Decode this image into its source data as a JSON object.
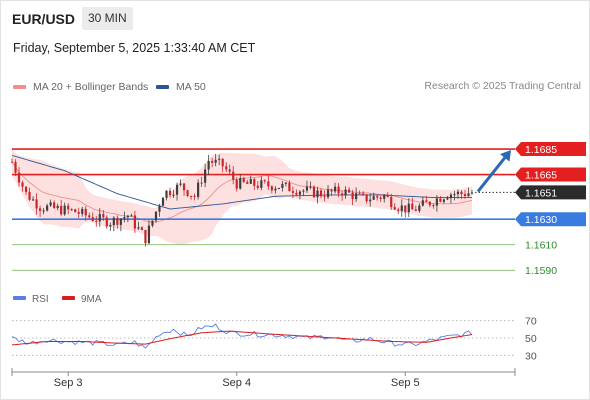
{
  "header": {
    "symbol": "EUR/USD",
    "timeframe": "30 MIN"
  },
  "datetime": "Friday, September 5, 2025 1:33:40 AM CET",
  "legend": {
    "ma_bb": {
      "label": "MA 20 + Bollinger Bands",
      "color": "#f0908a"
    },
    "ma50": {
      "label": "MA 50",
      "color": "#2f5496"
    }
  },
  "research_text": "Research © 2025 Trading Central",
  "rsi_legend": {
    "rsi": {
      "label": "RSI",
      "color": "#5b7fe0"
    },
    "ma9": {
      "label": "9MA",
      "color": "#d62020"
    }
  },
  "colors": {
    "up_candle": "#3d3d3d",
    "down_candle": "#c8252b",
    "resistance": "#e3201f",
    "support_main": "#3a7be0",
    "support_minor": "#6aaf4b",
    "current_price_bg": "#2b2b2b",
    "arrow": "#2a67b5",
    "bb_fill": "#fde0e0"
  },
  "chart_data": [
    {
      "type": "candlestick",
      "x_ticks": [
        "Sep 3",
        "Sep 4",
        "Sep 5"
      ],
      "ylim": [
        1.158,
        1.1725
      ],
      "current_price": 1.1651,
      "levels": [
        {
          "label": "1.1685",
          "value": 1.1685,
          "role": "resistance"
        },
        {
          "label": "1.1665",
          "value": 1.1665,
          "role": "resistance"
        },
        {
          "label": "1.1630",
          "value": 1.163,
          "role": "support"
        },
        {
          "label": "1.1610",
          "value": 1.161,
          "role": "minor-support"
        },
        {
          "label": "1.1590",
          "value": 1.159,
          "role": "minor-support"
        }
      ],
      "forecast_target": 1.1685,
      "anchors": [
        [
          0,
          1.1675
        ],
        [
          4,
          1.165
        ],
        [
          8,
          1.164
        ],
        [
          13,
          1.1638
        ],
        [
          18,
          1.1636
        ],
        [
          23,
          1.1631
        ],
        [
          28,
          1.1628
        ],
        [
          33,
          1.1633
        ],
        [
          38,
          1.1615
        ],
        [
          43,
          1.165
        ],
        [
          48,
          1.1656
        ],
        [
          52,
          1.1648
        ],
        [
          56,
          1.1676
        ],
        [
          60,
          1.1672
        ],
        [
          64,
          1.1658
        ],
        [
          70,
          1.1657
        ],
        [
          76,
          1.1656
        ],
        [
          82,
          1.1653
        ],
        [
          88,
          1.165
        ],
        [
          94,
          1.1652
        ],
        [
          100,
          1.1646
        ],
        [
          106,
          1.1648
        ],
        [
          110,
          1.164
        ],
        [
          114,
          1.1637
        ],
        [
          118,
          1.1642
        ],
        [
          124,
          1.165
        ],
        [
          128,
          1.165
        ],
        [
          131,
          1.1651
        ]
      ],
      "ma50_anchors": [
        [
          0,
          1.168
        ],
        [
          15,
          1.1668
        ],
        [
          30,
          1.165
        ],
        [
          45,
          1.1638
        ],
        [
          60,
          1.1642
        ],
        [
          75,
          1.1648
        ],
        [
          90,
          1.1649
        ],
        [
          105,
          1.1649
        ],
        [
          120,
          1.1647
        ],
        [
          131,
          1.1647
        ]
      ]
    },
    {
      "type": "line",
      "title": "RSI",
      "ylim": [
        20,
        80
      ],
      "y_ticks": [
        70,
        50,
        30
      ],
      "rsi_anchors": [
        [
          0,
          50
        ],
        [
          5,
          44
        ],
        [
          10,
          48
        ],
        [
          15,
          46
        ],
        [
          20,
          45
        ],
        [
          25,
          44
        ],
        [
          30,
          42
        ],
        [
          35,
          45
        ],
        [
          38,
          38
        ],
        [
          42,
          55
        ],
        [
          46,
          60
        ],
        [
          50,
          52
        ],
        [
          54,
          62
        ],
        [
          58,
          64
        ],
        [
          62,
          56
        ],
        [
          66,
          55
        ],
        [
          72,
          54
        ],
        [
          78,
          53
        ],
        [
          84,
          50
        ],
        [
          90,
          52
        ],
        [
          96,
          46
        ],
        [
          102,
          49
        ],
        [
          108,
          44
        ],
        [
          114,
          42
        ],
        [
          118,
          46
        ],
        [
          124,
          51
        ],
        [
          131,
          56
        ]
      ],
      "ma9_anchors": [
        [
          0,
          42
        ],
        [
          10,
          46
        ],
        [
          20,
          46
        ],
        [
          30,
          44
        ],
        [
          38,
          43
        ],
        [
          46,
          50
        ],
        [
          54,
          56
        ],
        [
          62,
          58
        ],
        [
          72,
          55
        ],
        [
          84,
          52
        ],
        [
          96,
          49
        ],
        [
          108,
          46
        ],
        [
          118,
          45
        ],
        [
          125,
          50
        ],
        [
          131,
          54
        ]
      ]
    }
  ]
}
